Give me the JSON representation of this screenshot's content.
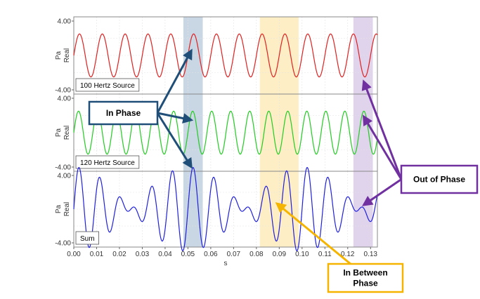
{
  "chart_data": {
    "type": "line",
    "xlabel": "s",
    "x_ticks": [
      "0.00",
      "0.01",
      "0.02",
      "0.03",
      "0.04",
      "0.05",
      "0.06",
      "0.07",
      "0.08",
      "0.09",
      "0.10",
      "0.11",
      "0.12",
      "0.13"
    ],
    "xlim": [
      0,
      0.133
    ],
    "grid": true,
    "panels": [
      {
        "legend": "100 Hertz Source",
        "ylabel": "Pa\nReal",
        "y_ticks": [
          "4.00",
          "-4.00"
        ],
        "ylim": [
          -4,
          4
        ],
        "color": "#e02020",
        "series": [
          {
            "frequency_hz": 100,
            "amplitude": 2.5,
            "phase_deg": 0
          }
        ]
      },
      {
        "legend": "120 Hertz Source",
        "ylabel": "Pa\nReal",
        "y_ticks": [
          "4.00",
          "-4.00"
        ],
        "ylim": [
          -4,
          4
        ],
        "color": "#22cc22",
        "series": [
          {
            "frequency_hz": 120,
            "amplitude": 2.5,
            "phase_deg": 0
          }
        ]
      },
      {
        "legend": "Sum",
        "ylabel": "Pa\nReal",
        "y_ticks": [
          "4.00",
          "-4.00"
        ],
        "ylim": [
          -4,
          4
        ],
        "color": "#2020dd",
        "series": [
          {
            "sum_of": [
              100,
              120
            ],
            "amplitude": 2.5,
            "phase_deg": 0
          }
        ]
      }
    ],
    "bands": [
      {
        "x_start": 0.048,
        "x_end": 0.0565,
        "color": "#c9d6e3"
      },
      {
        "x_start": 0.0815,
        "x_end": 0.0985,
        "color": "#fdeec6"
      },
      {
        "x_start": 0.1225,
        "x_end": 0.131,
        "color": "#e0d4ec"
      }
    ],
    "annotations": [
      {
        "text": "In Phase",
        "color": "#1f4e79",
        "targets": [
          {
            "x": 0.0515,
            "panel": 0
          },
          {
            "x": 0.0515,
            "panel": 1
          },
          {
            "x": 0.0515,
            "panel": 2
          }
        ]
      },
      {
        "text": "Out of Phase",
        "color": "#7030a0",
        "targets": [
          {
            "x": 0.127,
            "panel": 0
          },
          {
            "x": 0.127,
            "panel": 1
          },
          {
            "x": 0.127,
            "panel": 2
          }
        ]
      },
      {
        "text": "In Between\nPhase",
        "color": "#f4b400",
        "targets": [
          {
            "x": 0.089,
            "panel": 2
          }
        ]
      }
    ]
  }
}
